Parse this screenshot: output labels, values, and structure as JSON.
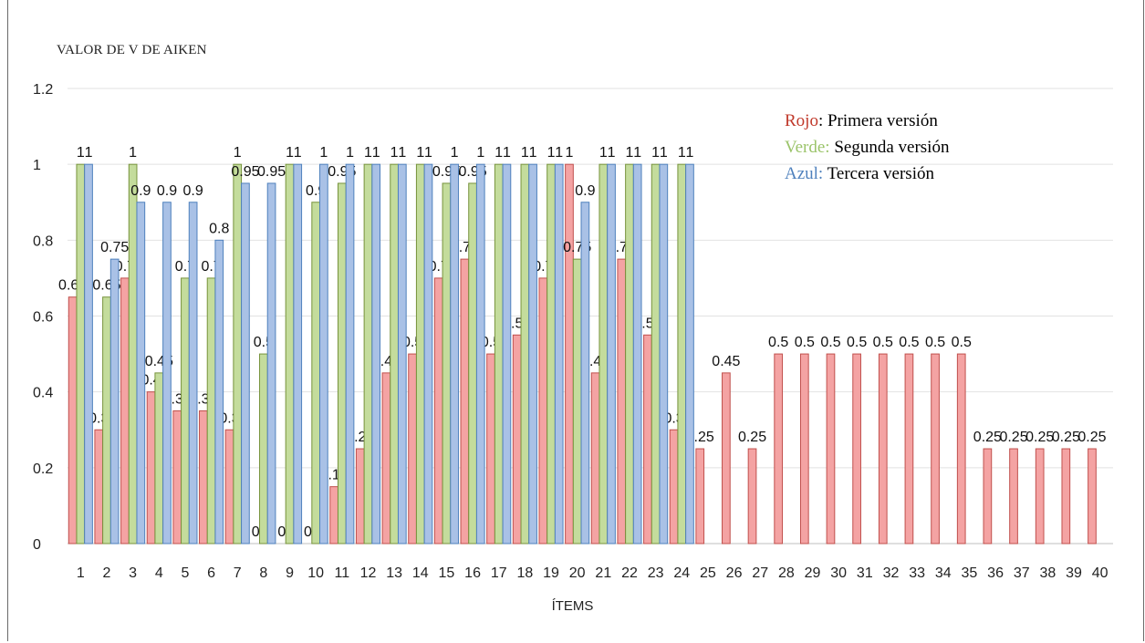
{
  "chart_data": {
    "type": "bar",
    "ylabel": "VALOR DE V DE AIKEN",
    "xlabel": "ÍTEMS",
    "ylim": [
      0,
      1.2
    ],
    "yticks": [
      "0",
      "0.2",
      "0.4",
      "0.6",
      "0.8",
      "1",
      "1.2"
    ],
    "grid": true,
    "legend_position": "top-right",
    "categories": [
      "1",
      "2",
      "3",
      "4",
      "5",
      "6",
      "7",
      "8",
      "9",
      "10",
      "11",
      "12",
      "13",
      "14",
      "15",
      "16",
      "17",
      "18",
      "19",
      "20",
      "21",
      "22",
      "23",
      "24",
      "25",
      "26",
      "27",
      "28",
      "29",
      "30",
      "31",
      "32",
      "33",
      "34",
      "35",
      "36",
      "37",
      "38",
      "39",
      "40"
    ],
    "series": [
      {
        "color": "#f4a3a3",
        "stroke": "#c0504d",
        "values": [
          0.65,
          0.3,
          0.7,
          0.4,
          0.35,
          0.35,
          0.3,
          0,
          0,
          0,
          0.15,
          0.25,
          0.45,
          0.5,
          0.7,
          0.75,
          0.5,
          0.55,
          0.7,
          1,
          0.45,
          0.75,
          0.55,
          0.3,
          0.25,
          0.45,
          0.25,
          0.5,
          0.5,
          0.5,
          0.5,
          0.5,
          0.5,
          0.5,
          0.5,
          0.25,
          0.25,
          0.25,
          0.25,
          0.25
        ]
      },
      {
        "color": "#c4dc9c",
        "stroke": "#77933c",
        "values": [
          1,
          0.65,
          1,
          0.45,
          0.7,
          0.7,
          1,
          0.5,
          1,
          0.9,
          0.95,
          1,
          1,
          1,
          0.95,
          0.95,
          1,
          1,
          1,
          0.75,
          1,
          1,
          1,
          1,
          null,
          null,
          null,
          null,
          null,
          null,
          null,
          null,
          null,
          null,
          null,
          null,
          null,
          null,
          null,
          null
        ]
      },
      {
        "color": "#a9c1e6",
        "stroke": "#4f81bd",
        "values": [
          1,
          0.75,
          0.9,
          0.9,
          0.9,
          0.8,
          0.95,
          0.95,
          1,
          1,
          1,
          1,
          1,
          1,
          1,
          1,
          1,
          1,
          1,
          0.9,
          1,
          1,
          1,
          1,
          null,
          null,
          null,
          null,
          null,
          null,
          null,
          null,
          null,
          null,
          null,
          null,
          null,
          null,
          null,
          null
        ]
      }
    ]
  },
  "legend": [
    {
      "key": "Rojo",
      "colon": ":",
      "text": " Primera versión",
      "color": "#c0392b"
    },
    {
      "key": "Verde:",
      "colon": "",
      "text": " Segunda versión",
      "color": "#9bc46a"
    },
    {
      "key": "Azul:",
      "colon": "",
      "text": " Tercera versión",
      "color": "#4f81bd"
    }
  ]
}
